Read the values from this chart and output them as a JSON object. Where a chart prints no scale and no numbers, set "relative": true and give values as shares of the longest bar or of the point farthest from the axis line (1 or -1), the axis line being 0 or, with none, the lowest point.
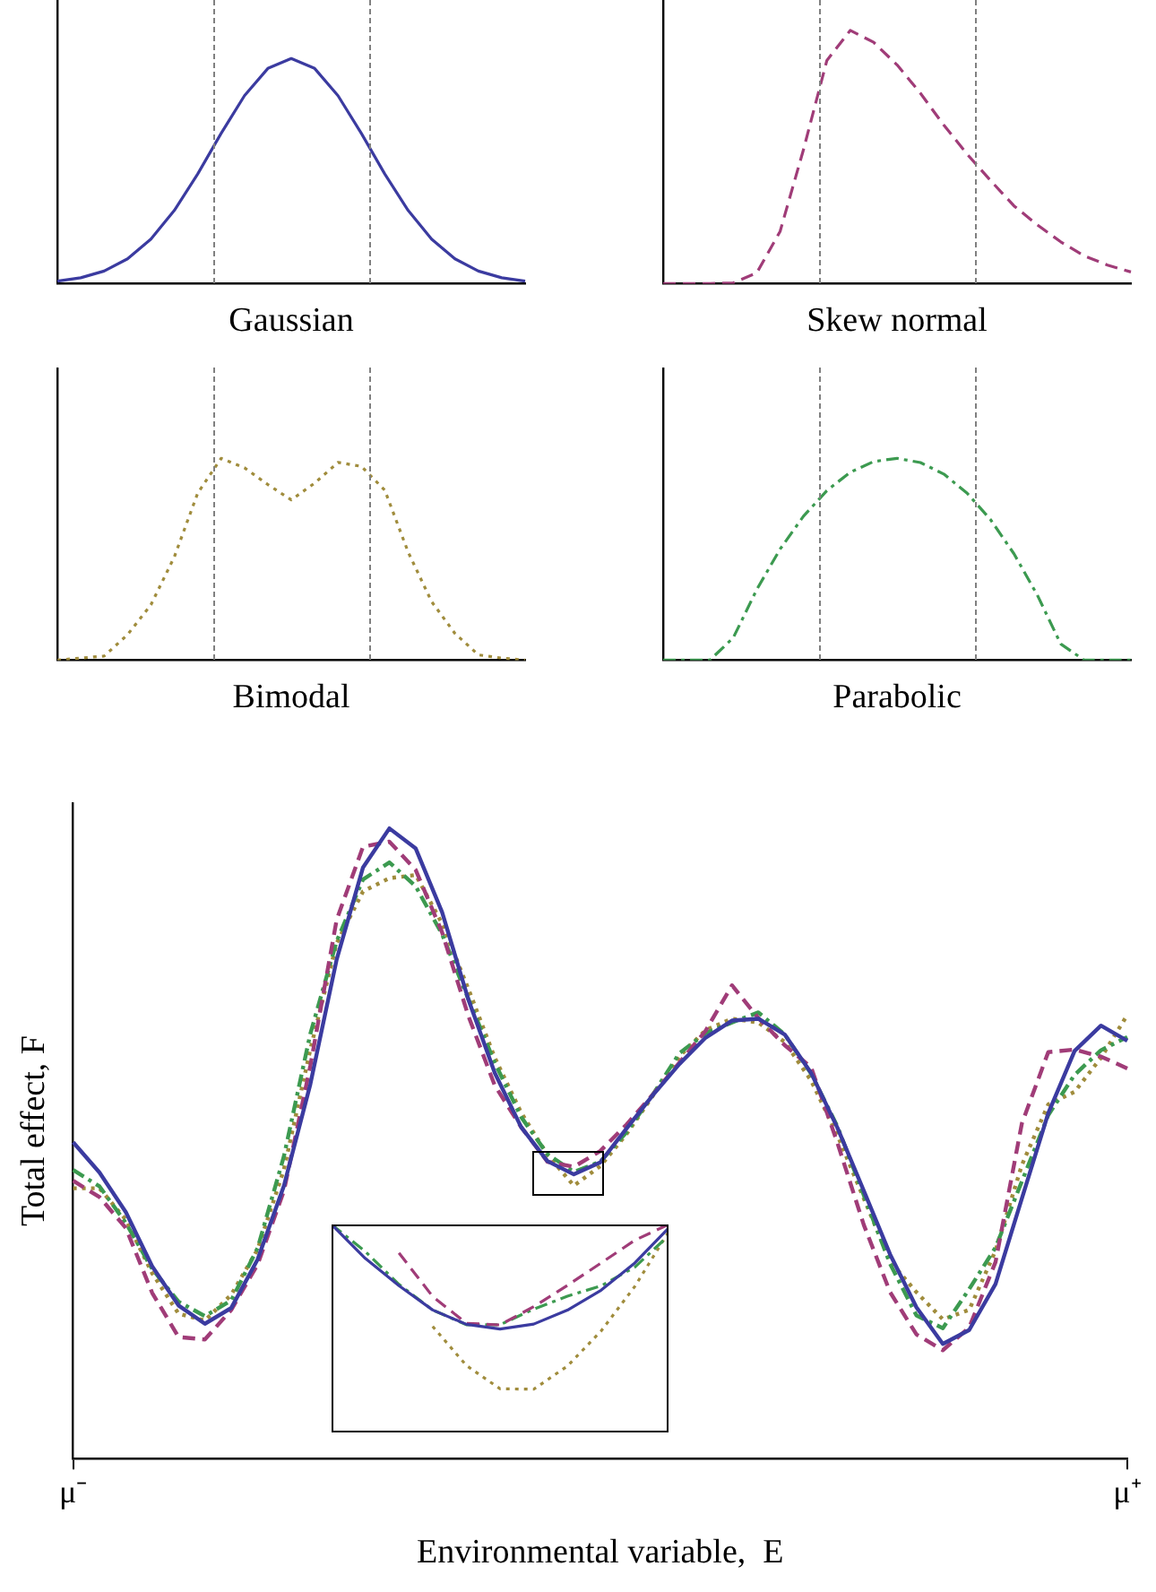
{
  "chart_data": [
    {
      "type": "line",
      "xlabel": "Gaussian",
      "relative": true,
      "tick_labels": false,
      "grid": false,
      "legend": false,
      "marker": "none",
      "categories": [
        null,
        null,
        null,
        null,
        null,
        null,
        null,
        null,
        null,
        null,
        null,
        null,
        null,
        null,
        null,
        null,
        null,
        null,
        null,
        null,
        null
      ],
      "series": [
        {
          "color": "#3b3ba0",
          "line_style": "solid",
          "values": [
            0.011,
            0.026,
            0.056,
            0.11,
            0.198,
            0.325,
            0.487,
            0.667,
            0.835,
            0.956,
            1,
            0.956,
            0.835,
            0.667,
            0.487,
            0.325,
            0.198,
            0.11,
            0.056,
            0.026,
            0.011
          ]
        }
      ]
    },
    {
      "type": "line",
      "xlabel": "Skew normal",
      "relative": true,
      "tick_labels": false,
      "grid": false,
      "legend": false,
      "marker": "none",
      "categories": [
        null,
        null,
        null,
        null,
        null,
        null,
        null,
        null,
        null,
        null,
        null,
        null,
        null,
        null,
        null,
        null,
        null,
        null,
        null,
        null,
        null
      ],
      "series": [
        {
          "color": "#a03c78",
          "line_style": "dashed",
          "values": [
            0,
            0,
            0,
            0.003,
            0.042,
            0.206,
            0.529,
            0.881,
            1,
            0.953,
            0.864,
            0.752,
            0.626,
            0.511,
            0.407,
            0.307,
            0.232,
            0.165,
            0.11,
            0.073,
            0.046
          ]
        }
      ]
    },
    {
      "type": "line",
      "xlabel": "Bimodal",
      "relative": true,
      "tick_labels": false,
      "grid": false,
      "legend": false,
      "marker": "none",
      "categories": [
        null,
        null,
        null,
        null,
        null,
        null,
        null,
        null,
        null,
        null,
        null,
        null,
        null,
        null,
        null,
        null,
        null,
        null,
        null,
        null,
        null
      ],
      "series": [
        {
          "color": "#a08c3c",
          "line_style": "dotted",
          "values": [
            0,
            0.01,
            0.02,
            0.126,
            0.274,
            0.511,
            0.827,
            1,
            0.953,
            0.87,
            0.794,
            0.877,
            0.98,
            0.96,
            0.842,
            0.535,
            0.29,
            0.132,
            0.026,
            0.01,
            0
          ]
        }
      ]
    },
    {
      "type": "line",
      "xlabel": "Parabolic",
      "relative": true,
      "tick_labels": false,
      "grid": false,
      "legend": false,
      "marker": "none",
      "categories": [
        null,
        null,
        null,
        null,
        null,
        null,
        null,
        null,
        null,
        null,
        null,
        null,
        null,
        null,
        null,
        null,
        null,
        null,
        null,
        null,
        null
      ],
      "series": [
        {
          "color": "#3c9a50",
          "line_style": "dashdot",
          "values": [
            0,
            0,
            0,
            0.111,
            0.349,
            0.55,
            0.713,
            0.84,
            0.931,
            0.984,
            1,
            0.979,
            0.922,
            0.827,
            0.696,
            0.527,
            0.322,
            0.08,
            0,
            0,
            0
          ]
        }
      ]
    },
    {
      "type": "line",
      "xlabel": "Environmental variable,  E",
      "ylabel": "Total effect, F",
      "relative": true,
      "tick_labels": "x",
      "grid": false,
      "legend": false,
      "marker": "none",
      "categories": [
        "μ⁻",
        null,
        null,
        null,
        null,
        null,
        null,
        null,
        null,
        null,
        null,
        null,
        null,
        null,
        null,
        null,
        null,
        null,
        null,
        null,
        null,
        null,
        null,
        null,
        null,
        null,
        null,
        null,
        null,
        null,
        null,
        null,
        null,
        null,
        null,
        null,
        null,
        null,
        null,
        null,
        "μ⁺"
      ],
      "series": [
        {
          "color": "#3b3ba0",
          "line_style": "solid",
          "values": [
            0.502,
            0.454,
            0.391,
            0.305,
            0.243,
            0.214,
            0.239,
            0.316,
            0.433,
            0.594,
            0.792,
            0.938,
            1,
            0.968,
            0.867,
            0.728,
            0.612,
            0.526,
            0.472,
            0.451,
            0.47,
            0.524,
            0.577,
            0.626,
            0.668,
            0.695,
            0.698,
            0.673,
            0.612,
            0.525,
            0.425,
            0.324,
            0.24,
            0.182,
            0.204,
            0.277,
            0.413,
            0.548,
            0.647,
            0.687,
            0.663
          ]
        },
        {
          "color": "#a03c78",
          "line_style": "dashed",
          "values": [
            0.441,
            0.415,
            0.366,
            0.263,
            0.193,
            0.189,
            0.236,
            0.308,
            0.425,
            0.623,
            0.855,
            0.971,
            0.979,
            0.934,
            0.835,
            0.702,
            0.592,
            0.526,
            0.471,
            0.463,
            0.488,
            0.53,
            0.578,
            0.628,
            0.679,
            0.751,
            0.699,
            0.656,
            0.621,
            0.501,
            0.371,
            0.264,
            0.197,
            0.172,
            0.208,
            0.312,
            0.532,
            0.645,
            0.649,
            0.638,
            0.619
          ]
        },
        {
          "color": "#3c9a50",
          "line_style": "dashdot",
          "values": [
            0.458,
            0.432,
            0.374,
            0.301,
            0.249,
            0.226,
            0.251,
            0.334,
            0.48,
            0.674,
            0.821,
            0.919,
            0.946,
            0.908,
            0.832,
            0.729,
            0.628,
            0.542,
            0.483,
            0.455,
            0.471,
            0.518,
            0.578,
            0.643,
            0.675,
            0.692,
            0.708,
            0.673,
            0.611,
            0.527,
            0.418,
            0.309,
            0.227,
            0.207,
            0.269,
            0.335,
            0.44,
            0.545,
            0.609,
            0.648,
            0.669
          ]
        },
        {
          "color": "#a08c3c",
          "line_style": "dotted",
          "values": [
            0.429,
            0.429,
            0.379,
            0.294,
            0.23,
            0.219,
            0.26,
            0.332,
            0.459,
            0.649,
            0.818,
            0.9,
            0.921,
            0.926,
            0.849,
            0.745,
            0.636,
            0.549,
            0.482,
            0.433,
            0.464,
            0.515,
            0.576,
            0.638,
            0.68,
            0.698,
            0.692,
            0.661,
            0.6,
            0.513,
            0.413,
            0.313,
            0.264,
            0.221,
            0.236,
            0.33,
            0.466,
            0.562,
            0.582,
            0.636,
            0.704
          ]
        }
      ]
    },
    {
      "type": "line",
      "relative": true,
      "tick_labels": false,
      "grid": false,
      "legend": false,
      "marker": "none",
      "categories": [
        null,
        null,
        null,
        null,
        null,
        null,
        null,
        null,
        null,
        null,
        null
      ],
      "series": [
        {
          "color": "#3b3ba0",
          "line_style": "solid",
          "values": [
            1,
            0.837,
            0.706,
            0.589,
            0.52,
            0.497,
            0.521,
            0.588,
            0.684,
            0.815,
            0.982
          ]
        },
        {
          "color": "#a03c78",
          "line_style": "dashed",
          "values": [
            null,
            null,
            0.863,
            0.654,
            0.525,
            0.517,
            0.605,
            0.707,
            0.815,
            0.924,
            1
          ]
        },
        {
          "color": "#3c9a50",
          "line_style": "dashdot",
          "values": [
            1,
            0.87,
            0.712,
            0.589,
            0.518,
            0.518,
            0.593,
            0.655,
            0.705,
            0.795,
            0.946
          ]
        },
        {
          "color": "#a08c3c",
          "line_style": "dotted",
          "values": [
            null,
            null,
            null,
            0.51,
            0.322,
            0.21,
            0.208,
            0.319,
            0.488,
            0.702,
            0.964
          ]
        }
      ]
    }
  ]
}
